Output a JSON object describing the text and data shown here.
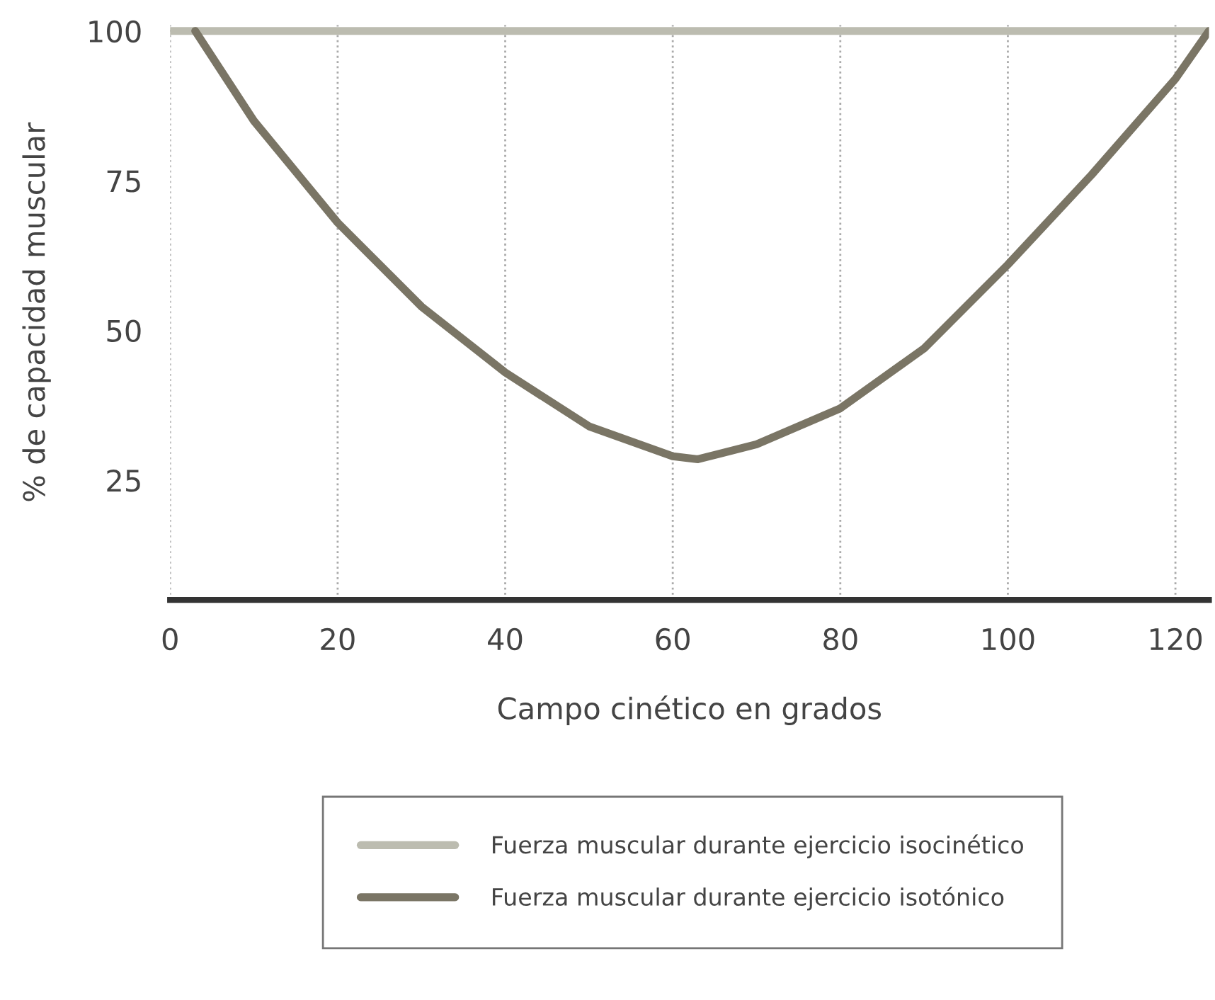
{
  "chart_data": {
    "type": "line",
    "xlabel": "Campo cinético en grados",
    "ylabel": "% de capacidad muscular",
    "xlim": [
      0,
      124
    ],
    "xticks": [
      0,
      20,
      40,
      60,
      80,
      100,
      120
    ],
    "ylim": [
      5,
      101
    ],
    "yticks": [
      25,
      50,
      75,
      100
    ],
    "grid": "x",
    "legend": "bottom",
    "marker": "none",
    "line_style": "solid",
    "series": [
      {
        "name": "Fuerza muscular durante ejercicio isocinético",
        "color": "#bcbcb0",
        "x": [
          0,
          124
        ],
        "values": [
          100,
          100
        ]
      },
      {
        "name": "Fuerza muscular durante ejercicio isotónico",
        "color": "#7a7565",
        "x": [
          3,
          10,
          20,
          30,
          40,
          50,
          60,
          63,
          70,
          80,
          90,
          100,
          110,
          120,
          124
        ],
        "values": [
          100,
          85,
          68,
          54,
          43,
          34,
          29,
          28.5,
          31,
          37,
          47,
          61,
          76,
          92,
          100
        ]
      }
    ]
  }
}
